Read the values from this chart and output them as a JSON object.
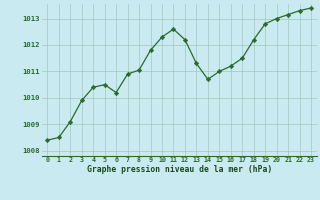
{
  "x": [
    0,
    1,
    2,
    3,
    4,
    5,
    6,
    7,
    8,
    9,
    10,
    11,
    12,
    13,
    14,
    15,
    16,
    17,
    18,
    19,
    20,
    21,
    22,
    23
  ],
  "y": [
    1008.4,
    1008.5,
    1009.1,
    1009.9,
    1010.4,
    1010.5,
    1010.2,
    1010.9,
    1011.05,
    1011.8,
    1012.3,
    1012.6,
    1012.2,
    1011.3,
    1010.7,
    1011.0,
    1011.2,
    1011.5,
    1012.2,
    1012.8,
    1013.0,
    1013.15,
    1013.3,
    1013.4
  ],
  "line_color": "#2d6a2d",
  "marker": "D",
  "marker_size": 2.2,
  "bg_color": "#c8eaf0",
  "grid_color": "#a0c8b8",
  "xlabel": "Graphe pression niveau de la mer (hPa)",
  "xlabel_color": "#1a4a1a",
  "tick_label_color": "#2d6a2d",
  "ylim": [
    1007.8,
    1013.55
  ],
  "yticks": [
    1008,
    1009,
    1010,
    1011,
    1012,
    1013
  ],
  "xlim": [
    -0.5,
    23.5
  ],
  "xticks": [
    0,
    1,
    2,
    3,
    4,
    5,
    6,
    7,
    8,
    9,
    10,
    11,
    12,
    13,
    14,
    15,
    16,
    17,
    18,
    19,
    20,
    21,
    22,
    23
  ]
}
